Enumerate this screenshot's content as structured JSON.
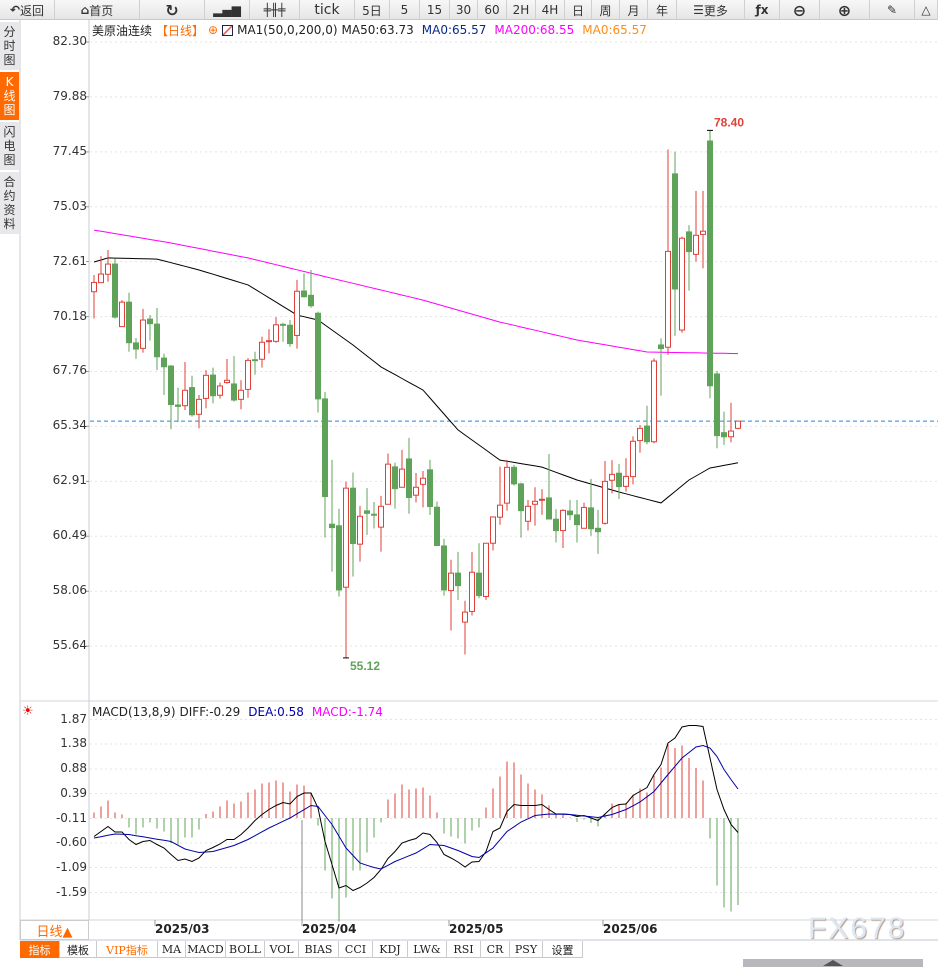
{
  "toolbar": [
    {
      "icon": "back-arrow-icon",
      "label": "返回",
      "w": 55
    },
    {
      "icon": "home-icon",
      "label": "首页",
      "w": 85
    },
    {
      "icon": "refresh-icon",
      "label": "",
      "w": 65
    },
    {
      "icon": "bar-chart-icon",
      "label": "",
      "w": 45
    },
    {
      "icon": "candlestick-icon",
      "label": "",
      "w": 50
    },
    {
      "label": "tick",
      "w": 55
    },
    {
      "label": "5日",
      "w": 35
    },
    {
      "label": "5",
      "w": 30
    },
    {
      "label": "15",
      "w": 30
    },
    {
      "label": "30",
      "w": 28
    },
    {
      "label": "60",
      "w": 29
    },
    {
      "label": "2H",
      "w": 29
    },
    {
      "label": "4H",
      "w": 29
    },
    {
      "label": "日",
      "w": 27
    },
    {
      "label": "周",
      "w": 28
    },
    {
      "label": "月",
      "w": 28
    },
    {
      "label": "年",
      "w": 29
    },
    {
      "icon": "menu-icon",
      "label": "更多",
      "w": 68
    },
    {
      "icon": "function-icon",
      "label": "",
      "w": 35
    },
    {
      "icon": "zoom-out-icon",
      "label": "",
      "w": 40
    },
    {
      "icon": "zoom-in-icon",
      "label": "",
      "w": 50
    },
    {
      "icon": "pen-icon",
      "label": "",
      "w": 45
    },
    {
      "icon": "triangle-icon",
      "label": "",
      "w": 23
    }
  ],
  "sidebar": [
    {
      "label": "分时图",
      "active": false
    },
    {
      "label": "K线图",
      "active": true
    },
    {
      "label": "闪电图",
      "active": false
    },
    {
      "label": "合约资料",
      "active": false
    }
  ],
  "legend": {
    "symbol": "美原油连续",
    "period": "【日线】",
    "ma_setting": "MA1(50,0,200,0)",
    "ma50": "MA50:63.73",
    "ma0_a": "MA0:65.57",
    "ma200": "MA200:68.55",
    "ma0_b": "MA0:65.57"
  },
  "macd_legend": {
    "name": "MACD(13,8,9)",
    "diff": "DIFF:-0.29",
    "dea": "DEA:0.58",
    "macd": "MACD:-1.74"
  },
  "colors": {
    "up": "#e0403a",
    "down": "#5fa35a",
    "ma50": "#000000",
    "ma200": "#ff00ff",
    "last_price": "#1e88e5",
    "diff": "#000000",
    "dea": "#0000aa",
    "accent": "#ff6a00"
  },
  "period_selector": "日线▲",
  "bottom_tabs": [
    {
      "label": "指标",
      "w": 40,
      "style": "active"
    },
    {
      "label": "模板",
      "w": 37,
      "style": ""
    },
    {
      "label": "VIP指标",
      "w": 61,
      "style": "vip"
    },
    {
      "label": "MA",
      "w": 28,
      "style": ""
    },
    {
      "label": "MACD",
      "w": 40,
      "style": ""
    },
    {
      "label": "BOLL",
      "w": 39,
      "style": ""
    },
    {
      "label": "VOL",
      "w": 34,
      "style": ""
    },
    {
      "label": "BIAS",
      "w": 40,
      "style": ""
    },
    {
      "label": "CCI",
      "w": 34,
      "style": ""
    },
    {
      "label": "KDJ",
      "w": 35,
      "style": ""
    },
    {
      "label": "LW&",
      "w": 39,
      "style": ""
    },
    {
      "label": "RSI",
      "w": 34,
      "style": ""
    },
    {
      "label": "CR",
      "w": 29,
      "style": ""
    },
    {
      "label": "PSY",
      "w": 33,
      "style": ""
    },
    {
      "label": "设置",
      "w": 40,
      "style": ""
    }
  ],
  "watermark": "FX678",
  "chart_data": [
    {
      "type": "candlestick",
      "title": "美原油连续",
      "yticks": [
        "82.30",
        "79.88",
        "77.45",
        "75.03",
        "72.61",
        "70.18",
        "67.76",
        "65.34",
        "62.91",
        "60.49",
        "58.06",
        "55.64"
      ],
      "ylim": [
        55.64,
        82.3
      ],
      "grid": true,
      "xticks": [
        {
          "label": "2025/03",
          "candle": 9
        },
        {
          "label": "2025/04",
          "candle": 30
        },
        {
          "label": "2025/05",
          "candle": 51
        },
        {
          "label": "2025/06",
          "candle": 73
        }
      ],
      "last_price": 65.57,
      "high_label": {
        "text": "78.40",
        "candle": 88,
        "value": 78.4
      },
      "low_label": {
        "text": "55.12",
        "candle": 36,
        "value": 55.12
      },
      "ohlc": [
        [
          71.28,
          72.02,
          70.1,
          71.69
        ],
        [
          71.68,
          72.85,
          71.68,
          72.06
        ],
        [
          72.05,
          73.12,
          71.72,
          72.5
        ],
        [
          72.5,
          72.75,
          70.1,
          70.16
        ],
        [
          69.74,
          70.91,
          69.74,
          70.82
        ],
        [
          70.82,
          71.24,
          68.63,
          69.03
        ],
        [
          69.02,
          69.24,
          68.32,
          68.75
        ],
        [
          68.78,
          70.52,
          68.59,
          70.03
        ],
        [
          70.07,
          70.25,
          69.12,
          69.87
        ],
        [
          69.85,
          70.56,
          67.82,
          68.41
        ],
        [
          68.35,
          68.55,
          66.72,
          67.97
        ],
        [
          68.0,
          68.04,
          65.21,
          66.3
        ],
        [
          66.28,
          67.04,
          65.53,
          66.22
        ],
        [
          66.25,
          68.18,
          66.06,
          66.93
        ],
        [
          67.05,
          67.57,
          65.77,
          65.85
        ],
        [
          65.87,
          66.72,
          65.25,
          66.53
        ],
        [
          66.57,
          67.82,
          66.13,
          67.59
        ],
        [
          67.6,
          67.93,
          66.35,
          66.69
        ],
        [
          66.71,
          67.27,
          66.56,
          67.12
        ],
        [
          67.27,
          68.31,
          67.22,
          67.37
        ],
        [
          67.21,
          68.44,
          66.43,
          66.5
        ],
        [
          66.53,
          67.38,
          66.09,
          66.93
        ],
        [
          66.97,
          68.35,
          66.6,
          68.25
        ],
        [
          68.28,
          68.63,
          67.62,
          68.25
        ],
        [
          68.3,
          69.3,
          67.93,
          69.05
        ],
        [
          69.09,
          69.63,
          68.56,
          69.12
        ],
        [
          69.09,
          70.16,
          69.03,
          69.82
        ],
        [
          69.84,
          69.91,
          69.07,
          69.81
        ],
        [
          69.8,
          70.03,
          68.85,
          68.99
        ],
        [
          69.35,
          71.8,
          68.77,
          71.3
        ],
        [
          71.31,
          72.09,
          71.02,
          71.06
        ],
        [
          71.12,
          72.24,
          70.57,
          70.66
        ],
        [
          70.33,
          70.4,
          65.95,
          66.55
        ],
        [
          66.55,
          66.86,
          60.43,
          62.24
        ],
        [
          61.02,
          63.86,
          58.93,
          60.87
        ],
        [
          60.95,
          61.7,
          57.83,
          58.12
        ],
        [
          58.24,
          62.9,
          55.12,
          62.61
        ],
        [
          62.61,
          63.3,
          58.71,
          60.17
        ],
        [
          60.14,
          61.83,
          59.37,
          61.37
        ],
        [
          61.61,
          62.61,
          60.55,
          61.5
        ],
        [
          61.46,
          62.0,
          60.83,
          61.43
        ],
        [
          60.89,
          62.27,
          59.81,
          61.81
        ],
        [
          61.9,
          64.14,
          61.9,
          63.67
        ],
        [
          63.55,
          63.74,
          61.71,
          62.59
        ],
        [
          62.65,
          64.3,
          62.65,
          63.45
        ],
        [
          63.9,
          64.83,
          61.48,
          62.2
        ],
        [
          62.3,
          63.28,
          61.98,
          62.65
        ],
        [
          62.78,
          63.37,
          61.76,
          63.05
        ],
        [
          63.42,
          63.86,
          61.43,
          61.8
        ],
        [
          61.77,
          62.02,
          60.08,
          60.08
        ],
        [
          60.06,
          60.37,
          57.87,
          58.12
        ],
        [
          58.09,
          59.45,
          56.33,
          58.86
        ],
        [
          58.86,
          59.8,
          57.68,
          58.31
        ],
        [
          56.7,
          57.64,
          55.27,
          57.14
        ],
        [
          57.17,
          59.8,
          56.99,
          58.9
        ],
        [
          58.86,
          60.18,
          57.75,
          57.87
        ],
        [
          57.83,
          60.18,
          57.68,
          60.18
        ],
        [
          60.18,
          61.34,
          59.86,
          61.34
        ],
        [
          61.33,
          63.56,
          60.99,
          61.86
        ],
        [
          61.95,
          63.86,
          61.62,
          63.53
        ],
        [
          63.53,
          63.64,
          62.73,
          62.8
        ],
        [
          62.8,
          62.85,
          60.43,
          61.62
        ],
        [
          61.15,
          62.09,
          60.74,
          61.81
        ],
        [
          61.9,
          62.65,
          60.96,
          62.03
        ],
        [
          62.1,
          62.57,
          61.43,
          62.12
        ],
        [
          62.18,
          64.12,
          61.25,
          61.25
        ],
        [
          61.24,
          61.68,
          60.21,
          60.74
        ],
        [
          60.74,
          61.68,
          59.97,
          61.63
        ],
        [
          61.6,
          62.09,
          61.2,
          61.44
        ],
        [
          61.43,
          62.09,
          60.21,
          61.0
        ],
        [
          60.84,
          61.97,
          60.84,
          61.76
        ],
        [
          61.74,
          63.02,
          60.51,
          60.82
        ],
        [
          60.84,
          61.65,
          59.71,
          60.69
        ],
        [
          61.06,
          63.81,
          61.0,
          62.91
        ],
        [
          62.96,
          63.85,
          62.38,
          63.22
        ],
        [
          63.27,
          63.68,
          62.13,
          62.68
        ],
        [
          62.69,
          63.93,
          62.46,
          63.13
        ],
        [
          63.12,
          64.9,
          62.78,
          64.68
        ],
        [
          64.71,
          65.4,
          64.18,
          65.25
        ],
        [
          65.35,
          66.25,
          64.55,
          64.66
        ],
        [
          64.66,
          68.34,
          64.59,
          68.22
        ],
        [
          68.93,
          69.22,
          66.69,
          68.77
        ],
        [
          68.83,
          77.56,
          68.49,
          73.06
        ],
        [
          76.48,
          77.46,
          69.33,
          71.4
        ],
        [
          69.59,
          73.71,
          69.47,
          73.64
        ],
        [
          73.92,
          74.22,
          71.33,
          73.05
        ],
        [
          72.93,
          75.73,
          72.61,
          73.77
        ],
        [
          73.81,
          75.73,
          72.31,
          73.95
        ],
        [
          77.93,
          78.4,
          66.58,
          67.13
        ],
        [
          67.65,
          67.78,
          64.37,
          64.93
        ],
        [
          65.06,
          65.99,
          64.52,
          64.88
        ],
        [
          64.88,
          66.38,
          64.63,
          65.13
        ],
        [
          65.25,
          65.57,
          65.21,
          65.57
        ]
      ],
      "series": [
        {
          "name": "MA50",
          "points": [
            [
              0,
              72.59
            ],
            [
              2,
              72.77
            ],
            [
              9,
              72.72
            ],
            [
              15,
              72.24
            ],
            [
              22,
              71.58
            ],
            [
              29,
              70.25
            ],
            [
              32,
              70.03
            ],
            [
              37,
              68.93
            ],
            [
              41,
              67.96
            ],
            [
              47,
              66.94
            ],
            [
              52,
              65.18
            ],
            [
              58,
              63.85
            ],
            [
              64,
              63.54
            ],
            [
              69,
              62.97
            ],
            [
              75,
              62.44
            ],
            [
              81,
              61.96
            ],
            [
              85,
              62.97
            ],
            [
              88,
              63.5
            ],
            [
              92,
              63.73
            ]
          ]
        },
        {
          "name": "MA200",
          "points": [
            [
              0,
              74.0
            ],
            [
              11,
              73.43
            ],
            [
              22,
              72.77
            ],
            [
              32,
              72.02
            ],
            [
              47,
              70.91
            ],
            [
              58,
              69.94
            ],
            [
              69,
              69.15
            ],
            [
              79,
              68.62
            ],
            [
              92,
              68.55
            ]
          ]
        }
      ]
    },
    {
      "type": "bar+line",
      "title": "MACD(13,8,9)",
      "yticks": [
        "1.87",
        "1.38",
        "0.88",
        "0.39",
        "-0.11",
        "-0.60",
        "-1.09",
        "-1.59"
      ],
      "grid": true,
      "macd": [
        0.11,
        0.23,
        0.35,
        0.11,
        0.07,
        -0.19,
        -0.33,
        -0.19,
        -0.09,
        -0.21,
        -0.27,
        -0.5,
        -0.53,
        -0.39,
        -0.39,
        -0.23,
        0.08,
        0.13,
        0.23,
        0.35,
        0.29,
        0.33,
        0.51,
        0.57,
        0.69,
        0.71,
        0.75,
        0.71,
        0.53,
        0.67,
        0.65,
        0.5,
        -0.15,
        -1.05,
        -1.61,
        -2.07,
        -1.59,
        -1.05,
        -1.05,
        -0.69,
        -0.39,
        -0.09,
        0.37,
        0.49,
        0.67,
        0.57,
        0.59,
        0.61,
        0.45,
        0.11,
        -0.31,
        -0.37,
        -0.41,
        -0.51,
        -0.25,
        -0.19,
        0.21,
        0.59,
        0.83,
        1.13,
        1.11,
        0.87,
        0.69,
        0.57,
        0.47,
        0.25,
        0.08,
        0.07,
        0.01,
        -0.08,
        -0.03,
        -0.1,
        -0.17,
        0.07,
        0.29,
        0.27,
        0.3,
        0.47,
        0.59,
        0.51,
        0.85,
        1.01,
        1.5,
        1.4,
        1.45,
        1.2,
        1.0,
        0.75,
        -0.41,
        -1.35,
        -1.79,
        -1.87,
        -1.74
      ],
      "diff": [
        -0.37,
        -0.27,
        -0.17,
        -0.28,
        -0.28,
        -0.43,
        -0.53,
        -0.47,
        -0.45,
        -0.53,
        -0.6,
        -0.73,
        -0.85,
        -0.82,
        -0.87,
        -0.8,
        -0.65,
        -0.59,
        -0.52,
        -0.43,
        -0.43,
        -0.33,
        -0.2,
        -0.05,
        0.07,
        0.17,
        0.25,
        0.31,
        0.28,
        0.43,
        0.5,
        0.5,
        0.2,
        -0.47,
        -0.93,
        -1.4,
        -1.35,
        -1.45,
        -1.39,
        -1.3,
        -1.19,
        -1.03,
        -0.81,
        -0.67,
        -0.5,
        -0.45,
        -0.41,
        -0.3,
        -0.33,
        -0.49,
        -0.73,
        -0.8,
        -0.88,
        -0.98,
        -0.88,
        -0.87,
        -0.67,
        -0.27,
        -0.2,
        0.13,
        0.27,
        0.25,
        0.25,
        0.25,
        0.27,
        0.17,
        0.08,
        0.08,
        0.07,
        0.03,
        0.05,
        0,
        -0.05,
        0.08,
        0.21,
        0.27,
        0.28,
        0.45,
        0.53,
        0.61,
        0.87,
        1.07,
        1.5,
        1.6,
        1.82,
        1.85,
        1.85,
        1.83,
        1.2,
        0.57,
        0.17,
        -0.13,
        -0.29
      ],
      "dea_points": [
        [
          0,
          -0.4
        ],
        [
          3,
          -0.32
        ],
        [
          5,
          -0.33
        ],
        [
          8,
          -0.4
        ],
        [
          11,
          -0.47
        ],
        [
          13,
          -0.62
        ],
        [
          15,
          -0.69
        ],
        [
          17,
          -0.67
        ],
        [
          20,
          -0.55
        ],
        [
          22,
          -0.43
        ],
        [
          25,
          -0.2
        ],
        [
          28,
          0
        ],
        [
          31,
          0.25
        ],
        [
          32,
          0.23
        ],
        [
          34,
          -0.13
        ],
        [
          36,
          -0.6
        ],
        [
          38,
          -0.9
        ],
        [
          40,
          -0.99
        ],
        [
          41,
          -1.02
        ],
        [
          43,
          -0.87
        ],
        [
          46,
          -0.7
        ],
        [
          48,
          -0.53
        ],
        [
          50,
          -0.55
        ],
        [
          52,
          -0.65
        ],
        [
          54,
          -0.77
        ],
        [
          55,
          -0.79
        ],
        [
          57,
          -0.6
        ],
        [
          59,
          -0.27
        ],
        [
          61,
          -0.08
        ],
        [
          63,
          0.05
        ],
        [
          65,
          0.08
        ],
        [
          68,
          0.07
        ],
        [
          72,
          0.01
        ],
        [
          74,
          0.07
        ],
        [
          76,
          0.17
        ],
        [
          78,
          0.32
        ],
        [
          80,
          0.53
        ],
        [
          82,
          0.87
        ],
        [
          84,
          1.2
        ],
        [
          86,
          1.42
        ],
        [
          87,
          1.45
        ],
        [
          88,
          1.4
        ],
        [
          89,
          1.23
        ],
        [
          90,
          0.97
        ],
        [
          91,
          0.77
        ],
        [
          92,
          0.58
        ]
      ]
    }
  ]
}
